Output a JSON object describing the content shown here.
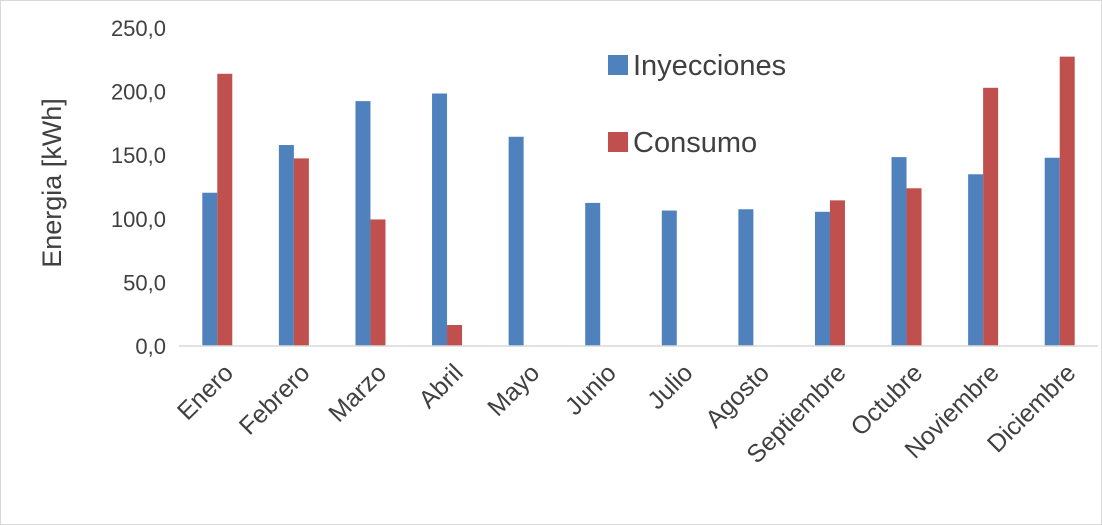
{
  "chart_data": {
    "type": "bar",
    "title": "",
    "xlabel": "",
    "ylabel": "Energia [kWh]",
    "ylim": [
      0,
      250
    ],
    "yticks": [
      0,
      50,
      100,
      150,
      200,
      250
    ],
    "ytick_labels": [
      "0,0",
      "50,0",
      "100,0",
      "150,0",
      "200,0",
      "250,0"
    ],
    "grid": false,
    "legend_position": "top-right",
    "categories": [
      "Enero",
      "Febrero",
      "Marzo",
      "Abril",
      "Mayo",
      "Junio",
      "Julio",
      "Agosto",
      "Septiembre",
      "Octubre",
      "Noviembre",
      "Diciembre"
    ],
    "series": [
      {
        "name": "Inyecciones",
        "color": "#4f81bd",
        "values": [
          120.5,
          158.0,
          192.5,
          198.5,
          164.5,
          112.5,
          106.5,
          107.5,
          105.5,
          148.5,
          135.0,
          148.0
        ]
      },
      {
        "name": "Consumo",
        "color": "#c0504d",
        "values": [
          214.0,
          147.5,
          99.5,
          16.5,
          0,
          0,
          0,
          0,
          114.5,
          124.0,
          203.0,
          227.5
        ]
      }
    ]
  }
}
